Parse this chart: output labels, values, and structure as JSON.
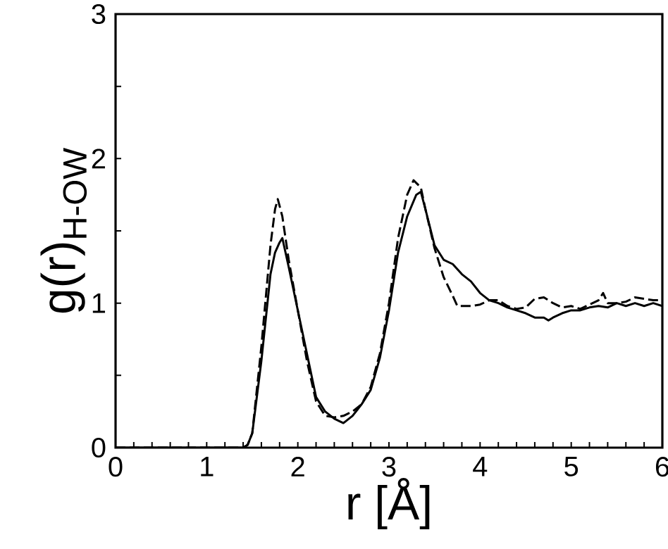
{
  "chart_data": {
    "type": "line",
    "xlabel": "r [Å]",
    "ylabel": "g(r)$_{H-OW}$",
    "x": [
      0,
      0.5,
      1.0,
      1.4,
      1.45,
      1.5,
      1.6,
      1.7,
      1.75,
      1.8,
      1.83,
      1.9,
      2.0,
      2.1,
      2.2,
      2.3,
      2.4,
      2.5,
      2.6,
      2.7,
      2.8,
      2.9,
      3.0,
      3.1,
      3.2,
      3.3,
      3.35,
      3.4,
      3.5,
      3.6,
      3.7,
      3.8,
      3.9,
      4.0,
      4.1,
      4.2,
      4.3,
      4.4,
      4.5,
      4.6,
      4.7,
      4.75,
      4.8,
      4.9,
      5.0,
      5.1,
      5.2,
      5.3,
      5.4,
      5.5,
      5.6,
      5.7,
      5.8,
      5.9,
      6.0
    ],
    "series": [
      {
        "color": "#000000",
        "line_style": "solid",
        "values": [
          0,
          0,
          0,
          0,
          0.02,
          0.1,
          0.6,
          1.2,
          1.35,
          1.42,
          1.45,
          1.25,
          0.95,
          0.65,
          0.35,
          0.25,
          0.2,
          0.17,
          0.22,
          0.3,
          0.4,
          0.62,
          0.95,
          1.35,
          1.6,
          1.75,
          1.77,
          1.65,
          1.4,
          1.3,
          1.27,
          1.2,
          1.15,
          1.07,
          1.02,
          1.0,
          0.97,
          0.95,
          0.93,
          0.9,
          0.9,
          0.88,
          0.9,
          0.93,
          0.95,
          0.95,
          0.97,
          0.98,
          0.97,
          1.0,
          0.98,
          1.0,
          0.98,
          1.0,
          0.98
        ]
      },
      {
        "color": "#000000",
        "line_style": "dashed",
        "x": [
          0,
          0.5,
          1.0,
          1.4,
          1.45,
          1.5,
          1.6,
          1.7,
          1.75,
          1.78,
          1.83,
          1.9,
          2.0,
          2.1,
          2.2,
          2.3,
          2.4,
          2.5,
          2.6,
          2.7,
          2.8,
          2.9,
          3.0,
          3.1,
          3.2,
          3.27,
          3.35,
          3.4,
          3.5,
          3.6,
          3.7,
          3.75,
          3.8,
          3.9,
          4.0,
          4.1,
          4.2,
          4.3,
          4.4,
          4.5,
          4.6,
          4.7,
          4.8,
          4.9,
          5.0,
          5.1,
          5.2,
          5.3,
          5.35,
          5.4,
          5.5,
          5.6,
          5.7,
          5.8,
          5.9,
          6.0
        ],
        "values": [
          0,
          0,
          0,
          0,
          0.02,
          0.1,
          0.7,
          1.4,
          1.65,
          1.72,
          1.6,
          1.3,
          0.95,
          0.6,
          0.32,
          0.22,
          0.21,
          0.22,
          0.25,
          0.3,
          0.42,
          0.65,
          1.0,
          1.45,
          1.75,
          1.85,
          1.8,
          1.65,
          1.38,
          1.18,
          1.05,
          0.98,
          0.98,
          0.98,
          0.99,
          1.02,
          1.02,
          0.98,
          0.96,
          0.97,
          1.03,
          1.04,
          1.0,
          0.97,
          0.98,
          0.96,
          0.99,
          1.02,
          1.07,
          1.0,
          1.0,
          1.01,
          1.04,
          1.03,
          1.02,
          1.02
        ]
      }
    ],
    "xlim": [
      0,
      6
    ],
    "ylim": [
      0,
      3
    ],
    "xticks": [
      0,
      {
        "value": 0.2,
        "label": null
      },
      {
        "value": 0.4,
        "label": null
      },
      {
        "value": 0.6,
        "label": null
      },
      {
        "value": 0.8,
        "label": null
      },
      1,
      {
        "value": 1.2,
        "label": null
      },
      {
        "value": 1.4,
        "label": null
      },
      {
        "value": 1.6,
        "label": null
      },
      {
        "value": 1.8,
        "label": null
      },
      2,
      {
        "value": 2.2,
        "label": null
      },
      {
        "value": 2.4,
        "label": null
      },
      {
        "value": 2.6,
        "label": null
      },
      {
        "value": 2.8,
        "label": null
      },
      3,
      {
        "value": 3.2,
        "label": null
      },
      {
        "value": 3.4,
        "label": null
      },
      {
        "value": 3.6,
        "label": null
      },
      {
        "value": 3.8,
        "label": null
      },
      4,
      {
        "value": 4.2,
        "label": null
      },
      {
        "value": 4.4,
        "label": null
      },
      {
        "value": 4.6,
        "label": null
      },
      {
        "value": 4.8,
        "label": null
      },
      5,
      {
        "value": 5.2,
        "label": null
      },
      {
        "value": 5.4,
        "label": null
      },
      {
        "value": 5.6,
        "label": null
      },
      {
        "value": 5.8,
        "label": null
      },
      6
    ],
    "yticks": [
      0,
      {
        "value": 0.5,
        "label": null
      },
      1,
      {
        "value": 1.5,
        "label": null
      },
      2,
      {
        "value": 2.5,
        "label": null
      },
      3
    ],
    "grid": false,
    "marker": "none"
  }
}
